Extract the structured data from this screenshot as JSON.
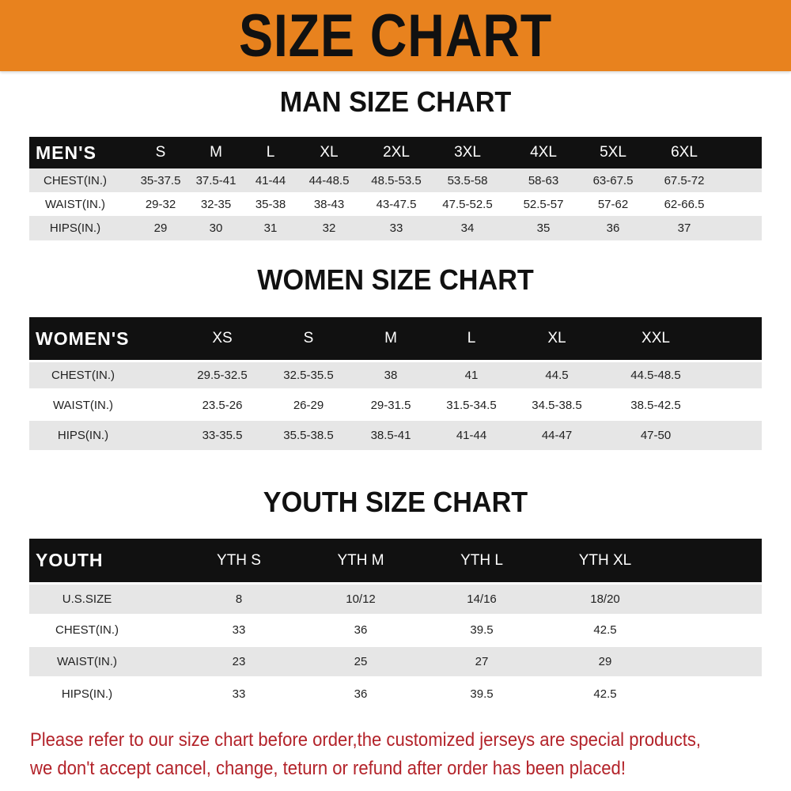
{
  "banner": {
    "title": "SIZE CHART",
    "color": "#e8821e"
  },
  "men": {
    "title": "MAN SIZE CHART",
    "header": [
      "MEN'S",
      "S",
      "M",
      "L",
      "XL",
      "2XL",
      "3XL",
      "4XL",
      "5XL",
      "6XL"
    ],
    "rows": [
      [
        "CHEST(IN.)",
        "35-37.5",
        "37.5-41",
        "41-44",
        "44-48.5",
        "48.5-53.5",
        "53.5-58",
        "58-63",
        "63-67.5",
        "67.5-72"
      ],
      [
        "WAIST(IN.)",
        "29-32",
        "32-35",
        "35-38",
        "38-43",
        "43-47.5",
        "47.5-52.5",
        "52.5-57",
        "57-62",
        "62-66.5"
      ],
      [
        "HIPS(IN.)",
        "29",
        "30",
        "31",
        "32",
        "33",
        "34",
        "35",
        "36",
        "37"
      ]
    ]
  },
  "women": {
    "title": "WOMEN SIZE CHART",
    "header": [
      "WOMEN'S",
      "XS",
      "S",
      "M",
      "L",
      "XL",
      "XXL"
    ],
    "rows": [
      [
        "CHEST(IN.)",
        "29.5-32.5",
        "32.5-35.5",
        "38",
        "41",
        "44.5",
        "44.5-48.5"
      ],
      [
        "WAIST(IN.)",
        "23.5-26",
        "26-29",
        "29-31.5",
        "31.5-34.5",
        "34.5-38.5",
        "38.5-42.5"
      ],
      [
        "HIPS(IN.)",
        "33-35.5",
        "35.5-38.5",
        "38.5-41",
        "41-44",
        "44-47",
        "47-50"
      ]
    ]
  },
  "youth": {
    "title": "YOUTH SIZE CHART",
    "header": [
      "YOUTH",
      "YTH S",
      "YTH M",
      "YTH L",
      "YTH XL"
    ],
    "rows": [
      [
        "U.S.SIZE",
        "8",
        "10/12",
        "14/16",
        "18/20"
      ],
      [
        "CHEST(IN.)",
        "33",
        "36",
        "39.5",
        "42.5"
      ],
      [
        "WAIST(IN.)",
        "23",
        "25",
        "27",
        "29"
      ],
      [
        "HIPS(IN.)",
        "33",
        "36",
        "39.5",
        "42.5"
      ]
    ]
  },
  "footer": {
    "line1": "Please refer to our size chart before order,the customized jerseys are special products,",
    "line2": "we don't accept cancel, change, teturn or refund after order has been placed!",
    "color": "#b3232a"
  }
}
